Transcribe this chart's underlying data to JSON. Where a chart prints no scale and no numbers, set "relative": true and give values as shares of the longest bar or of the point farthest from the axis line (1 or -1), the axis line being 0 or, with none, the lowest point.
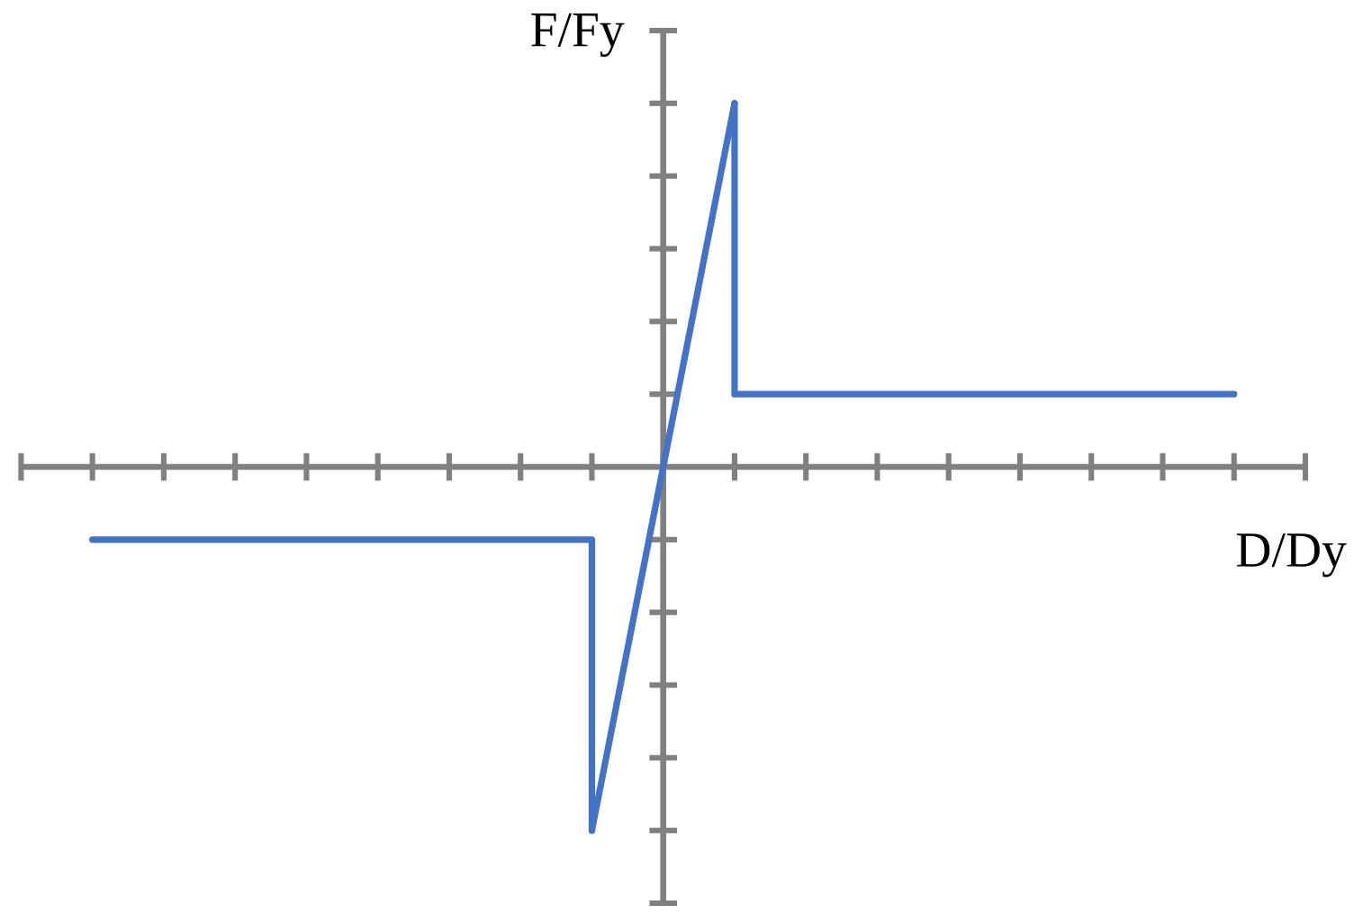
{
  "chart_data": {
    "type": "line",
    "xlabel": "D/Dy",
    "ylabel": "F/Fy",
    "relative": true,
    "categories": [
      null,
      null,
      null,
      null,
      null,
      null,
      null,
      null,
      null,
      null,
      null,
      null,
      null,
      null,
      null,
      null,
      null,
      null,
      null
    ],
    "series": [
      {
        "type": "step",
        "color": "#4472c4",
        "values": [
          null,
          -0.2,
          -0.2,
          -0.2,
          -0.2,
          -0.2,
          -0.2,
          -0.2,
          -1,
          null,
          null,
          null,
          null,
          null,
          null,
          null,
          null,
          null,
          null
        ]
      },
      {
        "color": "#4472c4",
        "values": [
          null,
          null,
          null,
          null,
          null,
          null,
          null,
          null,
          -1,
          0,
          1,
          null,
          null,
          null,
          null,
          null,
          null,
          null,
          null
        ]
      },
      {
        "type": "step",
        "color": "#4472c4",
        "values": [
          null,
          null,
          null,
          null,
          null,
          null,
          null,
          null,
          null,
          null,
          1,
          0.2,
          0.2,
          0.2,
          0.2,
          0.2,
          0.2,
          0.2,
          null
        ]
      }
    ]
  }
}
